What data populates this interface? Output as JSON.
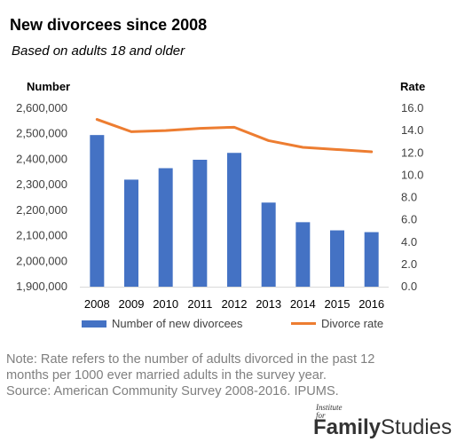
{
  "chart_data": {
    "type": "bar",
    "title": "New divorcees since 2008",
    "subtitle": "Based on adults 18 and older",
    "ylabel": "Number",
    "y2label": "Rate",
    "categories": [
      "2008",
      "2009",
      "2010",
      "2011",
      "2012",
      "2013",
      "2014",
      "2015",
      "2016"
    ],
    "ylim": [
      1900000,
      2600000
    ],
    "y_ticks": [
      "1,900,000",
      "2,000,000",
      "2,100,000",
      "2,200,000",
      "2,300,000",
      "2,400,000",
      "2,500,000",
      "2,600,000"
    ],
    "y2lim": [
      0,
      16
    ],
    "y2_ticks": [
      "0.0",
      "2.0",
      "4.0",
      "6.0",
      "8.0",
      "10.0",
      "12.0",
      "14.0",
      "16.0"
    ],
    "series": [
      {
        "name": "Number of new divorcees",
        "type": "bar",
        "axis": "left",
        "color": "#4472c4",
        "values": [
          2495000,
          2320000,
          2365000,
          2398000,
          2425000,
          2230000,
          2153000,
          2121000,
          2114000
        ]
      },
      {
        "name": "Divorce rate",
        "type": "line",
        "axis": "right",
        "color": "#ed7d31",
        "values": [
          15.0,
          13.9,
          14.0,
          14.2,
          14.3,
          13.1,
          12.5,
          12.3,
          12.1
        ]
      }
    ],
    "grid": false,
    "legend": "bottom"
  },
  "notes": {
    "line1": "Note: Rate refers to the number of adults divorced in the past 12",
    "line2": "months per 1000 ever married adults in the survey year.",
    "source": "Source: American Community Survey 2008-2016. IPUMS."
  },
  "logo": {
    "line1": "Institute for",
    "word1": "Family",
    "word2": "Studies"
  }
}
